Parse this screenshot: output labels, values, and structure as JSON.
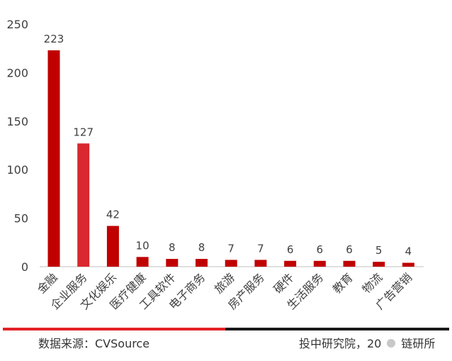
{
  "chart_data": {
    "type": "bar",
    "categories": [
      "金融",
      "企业服务",
      "文化娱乐",
      "医疗健康",
      "工具软件",
      "电子商务",
      "旅游",
      "房产服务",
      "硬件",
      "生活服务",
      "教育",
      "物流",
      "广告营销"
    ],
    "values": [
      223,
      127,
      42,
      10,
      8,
      8,
      7,
      7,
      6,
      6,
      6,
      5,
      4
    ],
    "data_labels": [
      "223",
      "127",
      "42",
      "10",
      "8",
      "8",
      "7",
      "7",
      "6",
      "6",
      "6",
      "5",
      "4"
    ],
    "yticks": [
      "0",
      "50",
      "100",
      "150",
      "200",
      "250"
    ],
    "ylim": [
      0,
      250
    ],
    "grid": false,
    "legend": "none",
    "colors": {
      "bar_main": "#c00000",
      "bar_alt": "#d9282f"
    }
  },
  "footer": {
    "source": "数据来源：CVSource",
    "credit": "投中研究院，20",
    "credit_tail": "链研所"
  },
  "colors": {
    "rule_left": "#e32227",
    "rule_right": "#1a1a1a"
  }
}
